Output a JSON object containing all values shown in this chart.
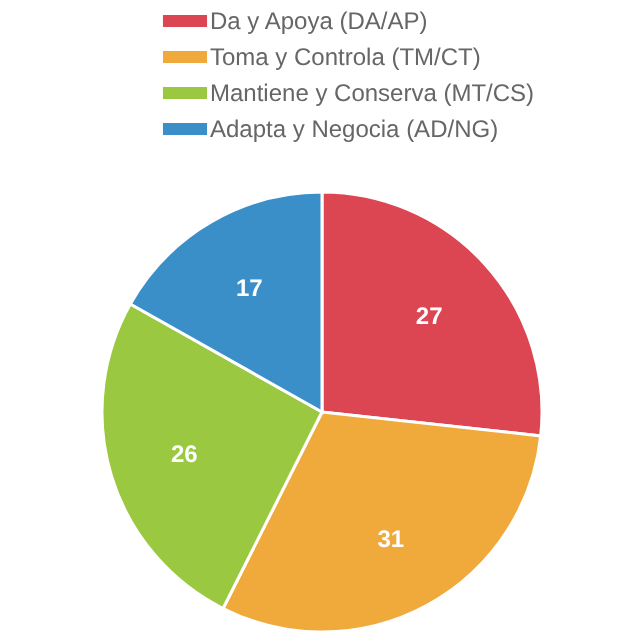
{
  "chart_data": {
    "type": "pie",
    "categories": [
      "Da y Apoya (DA/AP)",
      "Toma y Controla (TM/CT)",
      "Mantiene y Conserva (MT/CS)",
      "Adapta y Negocia (AD/NG)"
    ],
    "values": [
      27,
      31,
      26,
      17
    ],
    "colors": [
      "#dc4552",
      "#f0a93b",
      "#9ac840",
      "#3a8fc8"
    ],
    "data_labels": true,
    "legend": "top"
  }
}
